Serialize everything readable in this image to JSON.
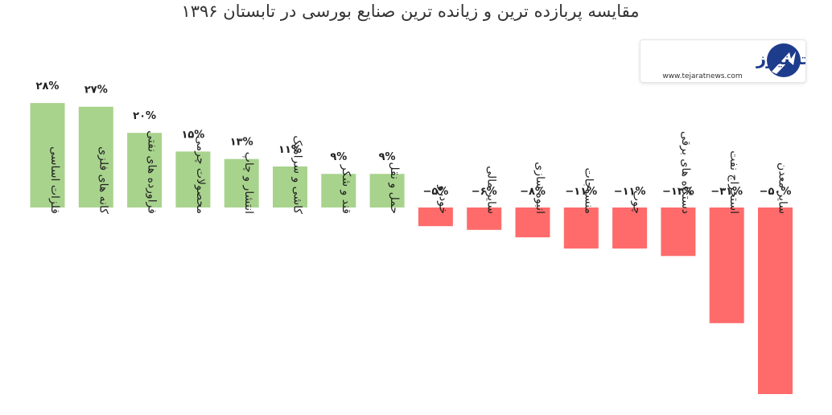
{
  "chart_data": {
    "type": "bar",
    "title": "مقایسه پربازده ترین و زیانده ترین صنایع بورسی در تابستان ۱۳۹۶",
    "categories": [
      "فلزات اساسی",
      "کانه های فلزی",
      "فراورده های نفتی",
      "محصولات چرمی",
      "انتشار و چاپ",
      "کاشی و سرامیک",
      "قند و شکر",
      "حمل و نقل",
      "خودرو",
      "سایر مالی",
      "انبوه سازی",
      "منسوجات",
      "چوب",
      "دستگاه های برقی",
      "استخراج نفت",
      "سایر معدن"
    ],
    "values": [
      28,
      27,
      20,
      15,
      13,
      11,
      9,
      9,
      -5,
      -6,
      -8,
      -11,
      -11,
      -13,
      -31,
      -50
    ],
    "value_labels": [
      "۲۸%",
      "۲۷%",
      "۲۰%",
      "۱۵%",
      "۱۳%",
      "۱۱%",
      "۹%",
      "۹%",
      "−۵%",
      "−۶%",
      "−۸%",
      "−۱۱%",
      "−۱۱%",
      "−۱۳%",
      "−۳۱%",
      "−۵۰%"
    ],
    "colors": {
      "positive": "#a8d38d",
      "negative": "#ff6b6b"
    },
    "grid": false,
    "legend": "none"
  },
  "logo": {
    "name": "تجارت نیوز",
    "url": "www.tejaratnews.com",
    "colors": {
      "primary": "#1e3c8c",
      "accent": "#e63946"
    }
  }
}
